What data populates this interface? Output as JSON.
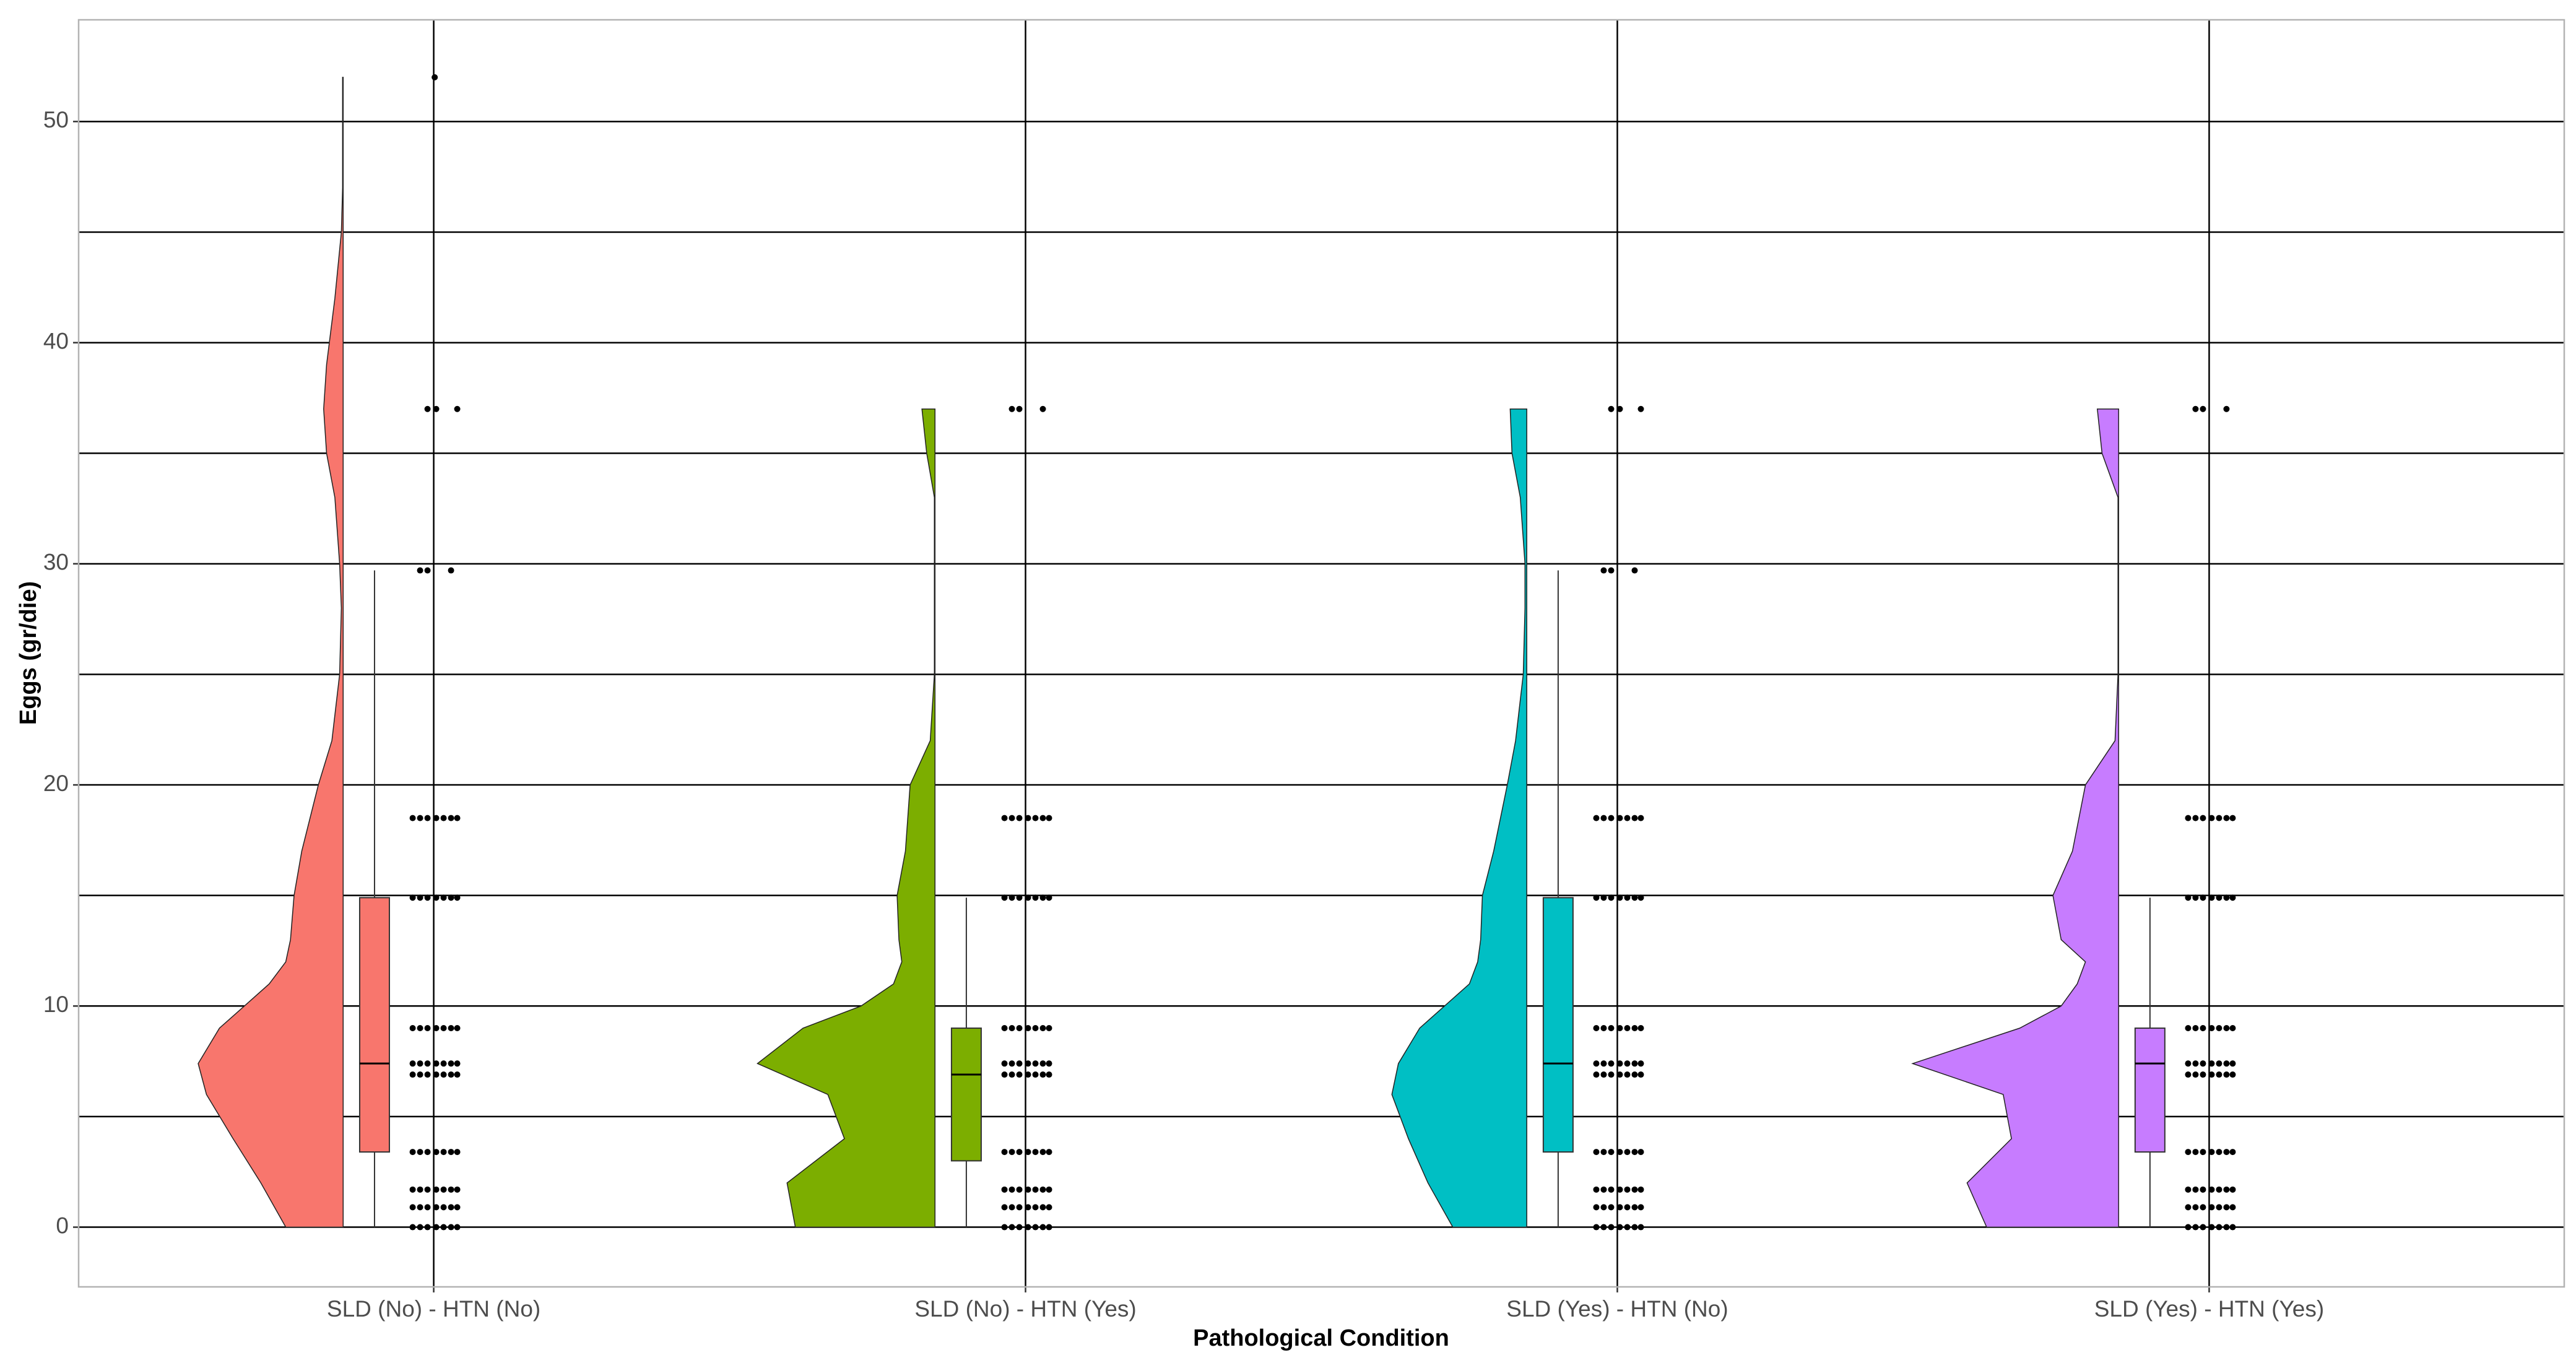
{
  "chart_data": {
    "type": "raincloud",
    "x_label": "Pathological  Condition",
    "y_label": "Eggs (gr/die)",
    "categories": [
      "SLD (No) - HTN (No)",
      "SLD (No) - HTN (Yes)",
      "SLD (Yes) - HTN (No)",
      "SLD (Yes) - HTN (Yes)"
    ],
    "xlim": [
      0.4,
      4.6
    ],
    "ylim": [
      -2.7,
      54.6
    ],
    "yticks": [
      0,
      10,
      20,
      30,
      40,
      50
    ],
    "minor_yticks": [
      5,
      15,
      25,
      35,
      45
    ],
    "grid": true,
    "violin_y": [
      0,
      2,
      4,
      6,
      7.4,
      9,
      10,
      11,
      12,
      13,
      15,
      17,
      20,
      22,
      25,
      28,
      30,
      33,
      35,
      37,
      39,
      42,
      45,
      47,
      52
    ],
    "series": [
      {
        "color": "#F8766D",
        "violin_width": [
          0.097,
          0.139,
          0.186,
          0.231,
          0.245,
          0.209,
          0.167,
          0.125,
          0.097,
          0.089,
          0.083,
          0.07,
          0.042,
          0.019,
          0.006,
          0.003,
          0.006,
          0.014,
          0.028,
          0.033,
          0.028,
          0.014,
          0.003,
          0.001,
          0.001
        ],
        "box_low": 0,
        "q1": 3.4,
        "median": 7.4,
        "q3": 14.9,
        "box_high": 29.7,
        "points": [
          0,
          0.9,
          1.7,
          3.4,
          6.9,
          7.4,
          9,
          14.9,
          18.5,
          29.7,
          37,
          52
        ]
      },
      {
        "color": "#7CAE00",
        "violin_width": [
          0.236,
          0.25,
          0.153,
          0.181,
          0.3,
          0.223,
          0.125,
          0.07,
          0.056,
          0.061,
          0.064,
          0.05,
          0.042,
          0.008,
          0.001,
          0.001,
          0.001,
          0.001,
          0.014,
          0.022,
          null,
          null,
          null,
          null,
          null
        ],
        "box_low": 0,
        "q1": 3.0,
        "median": 6.9,
        "q3": 9.0,
        "box_high": 14.9,
        "points": [
          0,
          0.9,
          1.7,
          3.4,
          6.9,
          7.4,
          9,
          14.9,
          18.5,
          37
        ]
      },
      {
        "color": "#00BFC4",
        "violin_width": [
          0.125,
          0.167,
          0.2,
          0.228,
          0.217,
          0.181,
          0.139,
          0.097,
          0.083,
          0.078,
          0.075,
          0.056,
          0.033,
          0.019,
          0.006,
          0.003,
          0.003,
          0.011,
          0.025,
          0.028,
          null,
          null,
          null,
          null,
          null
        ],
        "box_low": 0,
        "q1": 3.4,
        "median": 7.4,
        "q3": 14.9,
        "box_high": 29.7,
        "points": [
          0,
          0.9,
          1.7,
          3.4,
          6.9,
          7.4,
          9,
          14.9,
          18.5,
          29.7,
          37
        ]
      },
      {
        "color": "#C77CFF",
        "violin_width": [
          0.223,
          0.256,
          0.181,
          0.195,
          0.348,
          0.167,
          0.097,
          0.07,
          0.056,
          0.097,
          0.111,
          0.078,
          0.056,
          0.006,
          0.001,
          0.001,
          0.001,
          0.001,
          0.028,
          0.036,
          null,
          null,
          null,
          null,
          null
        ],
        "box_low": 0,
        "q1": 3.4,
        "median": 7.4,
        "q3": 9.0,
        "box_high": 14.9,
        "points": [
          0,
          0.9,
          1.7,
          3.4,
          6.9,
          7.4,
          9,
          14.9,
          18.5,
          37
        ]
      }
    ]
  }
}
